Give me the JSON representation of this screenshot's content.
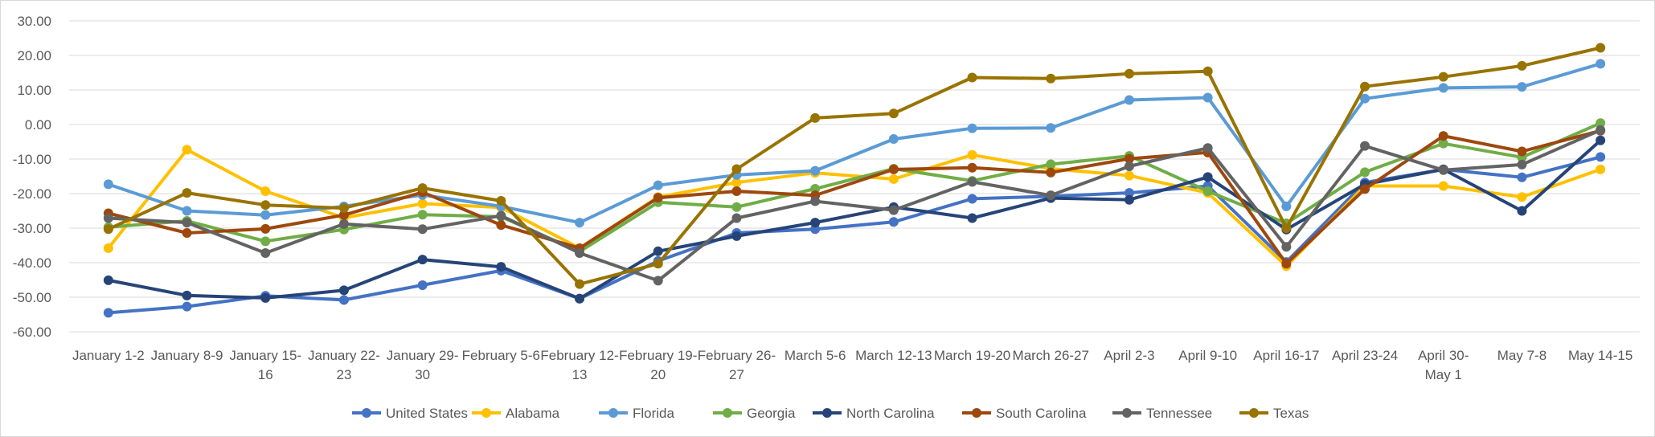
{
  "chart_data": {
    "type": "line",
    "title": "",
    "xlabel": "",
    "ylabel": "",
    "ylim": [
      -60,
      30
    ],
    "yticks": [
      "30.00",
      "20.00",
      "10.00",
      "0.00",
      "-10.00",
      "-20.00",
      "-30.00",
      "-40.00",
      "-50.00",
      "-60.00"
    ],
    "grid": true,
    "legend": "bottom",
    "categories": [
      [
        "January 1-2"
      ],
      [
        "January 8-9"
      ],
      [
        "January 15-",
        "16"
      ],
      [
        "January 22-",
        "23"
      ],
      [
        "January 29-",
        "30"
      ],
      [
        "February 5-6"
      ],
      [
        "February 12-",
        "13"
      ],
      [
        "February 19-",
        "20"
      ],
      [
        "February 26-",
        "27"
      ],
      [
        "March 5-6"
      ],
      [
        "March 12-13"
      ],
      [
        "March 19-20"
      ],
      [
        "March 26-27"
      ],
      [
        "April 2-3"
      ],
      [
        "April 9-10"
      ],
      [
        "April 16-17"
      ],
      [
        "April 23-24"
      ],
      [
        "April 30-",
        "May 1"
      ],
      [
        "May 7-8"
      ],
      [
        "May 14-15"
      ]
    ],
    "series": [
      {
        "name": "United States",
        "color": "#4472c4",
        "values": [
          -54.5,
          -52.7,
          -49.6,
          -50.8,
          -46.5,
          -42.3,
          -50.4,
          -39.5,
          -31.4,
          -30.3,
          -28.2,
          -21.5,
          -20.8,
          -19.8,
          -17.8,
          -39.8,
          -16.8,
          -13.0,
          -15.3,
          -9.4
        ]
      },
      {
        "name": "Alabama",
        "color": "#ffc000",
        "values": [
          -35.8,
          -7.3,
          -19.3,
          -27.0,
          -22.9,
          -24.0,
          -35.8,
          -21.0,
          -16.8,
          -14.0,
          -15.8,
          -8.8,
          -12.8,
          -14.8,
          -19.8,
          -41.0,
          -17.8,
          -17.8,
          -21.0,
          -13.0
        ]
      },
      {
        "name": "Florida",
        "color": "#5b9bd5",
        "values": [
          -17.3,
          -25.0,
          -26.2,
          -23.7,
          -20.4,
          -23.7,
          -28.4,
          -17.6,
          -14.6,
          -13.4,
          -4.2,
          -1.1,
          -1.0,
          7.1,
          7.8,
          -23.7,
          7.5,
          10.6,
          10.9,
          17.6
        ]
      },
      {
        "name": "Georgia",
        "color": "#70ad47",
        "values": [
          -29.7,
          -27.9,
          -33.8,
          -30.4,
          -26.1,
          -26.7,
          -36.8,
          -22.5,
          -23.9,
          -18.6,
          -12.8,
          -16.3,
          -11.5,
          -9.1,
          -19.3,
          -28.6,
          -13.8,
          -5.5,
          -9.5,
          0.4
        ]
      },
      {
        "name": "North Carolina",
        "color": "#264478",
        "values": [
          -45.1,
          -49.5,
          -50.2,
          -48.0,
          -39.1,
          -41.2,
          -50.4,
          -36.7,
          -32.3,
          -28.4,
          -23.9,
          -27.1,
          -21.3,
          -21.8,
          -15.2,
          -30.4,
          -17.3,
          -13.0,
          -25.0,
          -4.6
        ]
      },
      {
        "name": "South Carolina",
        "color": "#9e480e",
        "values": [
          -25.7,
          -31.4,
          -30.2,
          -26.2,
          -19.6,
          -29.1,
          -35.8,
          -21.2,
          -19.3,
          -20.5,
          -13.0,
          -12.5,
          -13.9,
          -9.9,
          -8.1,
          -40.3,
          -18.7,
          -3.3,
          -7.8,
          -1.8
        ]
      },
      {
        "name": "Tennessee",
        "color": "#636363",
        "values": [
          -27.1,
          -28.4,
          -37.2,
          -28.8,
          -30.3,
          -26.4,
          -37.2,
          -45.2,
          -27.1,
          -22.2,
          -24.8,
          -16.6,
          -20.5,
          -12.1,
          -6.8,
          -35.4,
          -6.2,
          -13.2,
          -11.6,
          -1.6
        ]
      },
      {
        "name": "Texas",
        "color": "#997300",
        "values": [
          -30.3,
          -19.8,
          -23.3,
          -24.2,
          -18.4,
          -22.1,
          -46.2,
          -40.3,
          -12.9,
          1.9,
          3.2,
          13.6,
          13.3,
          14.7,
          15.4,
          -30.0,
          11.0,
          13.8,
          17.0,
          22.2
        ]
      }
    ]
  }
}
